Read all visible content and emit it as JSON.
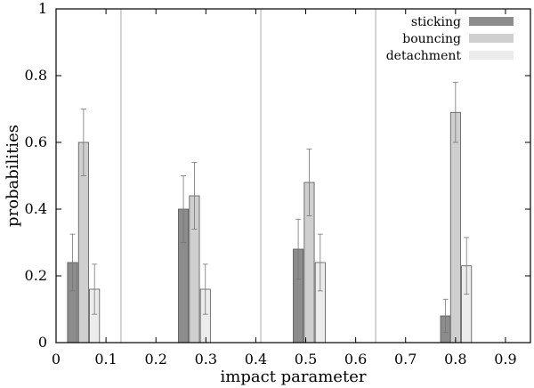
{
  "chart_data": {
    "type": "bar",
    "title": "",
    "xlabel": "impact parameter",
    "ylabel": "probabilities",
    "xlim": [
      0,
      0.95
    ],
    "ylim": [
      0,
      1
    ],
    "xticks": [
      "0",
      "0.1",
      "0.2",
      "0.3",
      "0.4",
      "0.5",
      "0.6",
      "0.7",
      "0.8",
      "0.9"
    ],
    "yticks": [
      "0",
      "0.2",
      "0.4",
      "0.6",
      "0.8",
      "1"
    ],
    "separators": [
      0.13,
      0.41,
      0.64
    ],
    "bar_width": 0.02,
    "legend_position": "top-right",
    "series": [
      {
        "name": "sticking",
        "color": "#8c8c8c",
        "x": [
          0.033,
          0.255,
          0.485,
          0.78
        ],
        "values": [
          0.24,
          0.4,
          0.28,
          0.08
        ],
        "error": [
          0.085,
          0.1,
          0.09,
          0.05
        ]
      },
      {
        "name": "bouncing",
        "color": "#cfcfcf",
        "x": [
          0.055,
          0.277,
          0.507,
          0.8
        ],
        "values": [
          0.6,
          0.44,
          0.48,
          0.69
        ],
        "error": [
          0.1,
          0.1,
          0.1,
          0.09
        ]
      },
      {
        "name": "detachment",
        "color": "#ececec",
        "x": [
          0.077,
          0.299,
          0.529,
          0.822
        ],
        "values": [
          0.16,
          0.16,
          0.24,
          0.23
        ],
        "error": [
          0.075,
          0.075,
          0.085,
          0.085
        ]
      }
    ]
  }
}
